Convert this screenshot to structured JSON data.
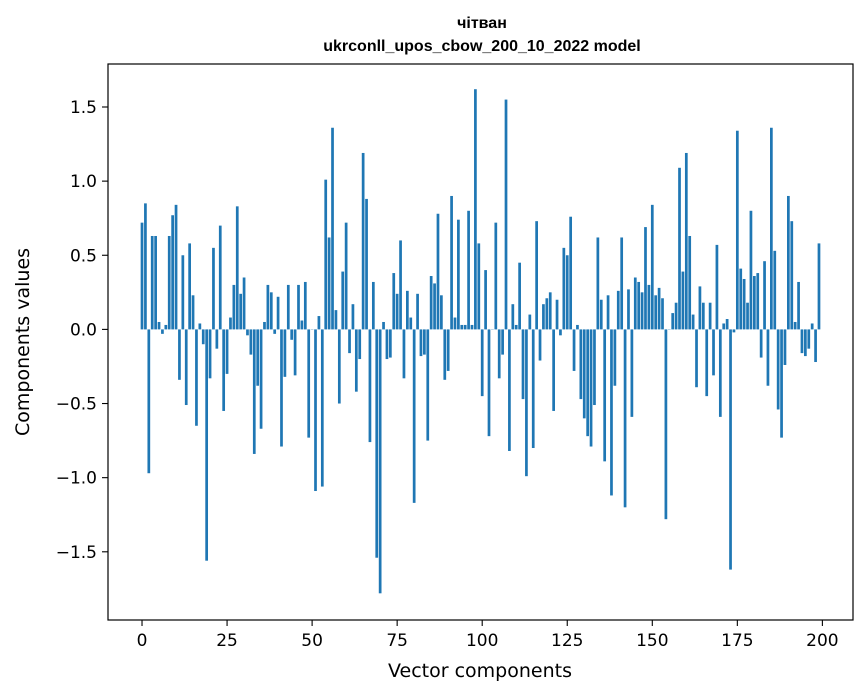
{
  "chart_data": {
    "type": "bar",
    "title_line1": "чітван",
    "title_line2": "ukrconll_upos_cbow_200_10_2022 model",
    "xlabel": "Vector components",
    "ylabel": "Components values",
    "xlim": [
      -10,
      209
    ],
    "ylim": [
      -1.96,
      1.79
    ],
    "xticks": [
      0,
      25,
      50,
      75,
      100,
      125,
      150,
      175,
      200
    ],
    "xtick_labels": [
      "0",
      "25",
      "50",
      "75",
      "100",
      "125",
      "150",
      "175",
      "200"
    ],
    "yticks": [
      -1.5,
      -1.0,
      -0.5,
      0.0,
      0.5,
      1.0,
      1.5
    ],
    "ytick_labels": [
      "−1.5",
      "−1.0",
      "−0.5",
      "0.0",
      "0.5",
      "1.0",
      "1.5"
    ],
    "grid": false,
    "bar_color": "#1f77b4",
    "values": [
      0.72,
      0.85,
      -0.97,
      0.63,
      0.63,
      0.05,
      -0.03,
      0.03,
      0.63,
      0.77,
      0.84,
      -0.34,
      0.5,
      -0.51,
      0.58,
      0.23,
      -0.65,
      0.04,
      -0.1,
      -1.56,
      -0.33,
      0.55,
      -0.13,
      0.7,
      -0.55,
      -0.3,
      0.08,
      0.3,
      0.83,
      0.24,
      0.35,
      -0.04,
      -0.17,
      -0.84,
      -0.38,
      -0.67,
      0.05,
      0.3,
      0.25,
      -0.03,
      0.22,
      -0.79,
      -0.32,
      0.3,
      -0.07,
      -0.31,
      0.3,
      0.06,
      0.32,
      -0.73,
      0.0,
      -1.09,
      0.09,
      -1.06,
      1.01,
      0.62,
      1.36,
      0.13,
      -0.5,
      0.39,
      0.72,
      -0.16,
      0.17,
      -0.42,
      -0.2,
      1.19,
      0.88,
      -0.76,
      0.32,
      -1.54,
      -1.78,
      0.05,
      -0.2,
      -0.19,
      0.38,
      0.24,
      0.6,
      -0.33,
      0.26,
      0.08,
      -1.17,
      0.24,
      -0.18,
      -0.17,
      -0.75,
      0.36,
      0.31,
      0.78,
      0.23,
      -0.34,
      -0.28,
      0.9,
      0.08,
      0.74,
      0.03,
      0.03,
      0.8,
      0.03,
      1.62,
      0.58,
      -0.45,
      0.4,
      -0.72,
      0.0,
      0.72,
      -0.33,
      -0.17,
      1.55,
      -0.82,
      0.17,
      0.03,
      0.45,
      -0.47,
      -0.99,
      0.1,
      -0.8,
      0.73,
      -0.21,
      0.17,
      0.21,
      0.25,
      -0.55,
      0.2,
      -0.04,
      0.55,
      0.5,
      0.76,
      -0.28,
      0.03,
      -0.47,
      -0.6,
      -0.72,
      -0.79,
      -0.51,
      0.62,
      0.2,
      -0.89,
      0.23,
      -1.12,
      -0.38,
      0.26,
      0.62,
      -1.2,
      0.27,
      -0.59,
      0.35,
      0.32,
      0.25,
      0.69,
      0.3,
      0.84,
      0.23,
      0.28,
      0.21,
      -1.28,
      0.0,
      0.11,
      0.18,
      1.09,
      0.39,
      1.19,
      0.63,
      0.1,
      -0.39,
      0.29,
      0.18,
      -0.45,
      0.18,
      -0.31,
      0.57,
      -0.59,
      0.04,
      0.07,
      -1.62,
      -0.02,
      1.34,
      0.41,
      0.34,
      0.18,
      0.8,
      0.36,
      0.38,
      -0.19,
      0.46,
      -0.38,
      1.36,
      0.53,
      -0.54,
      -0.73,
      -0.24,
      0.9,
      0.73,
      0.05,
      0.32,
      -0.16,
      -0.18,
      -0.13,
      0.04,
      -0.22,
      0.58
    ]
  }
}
